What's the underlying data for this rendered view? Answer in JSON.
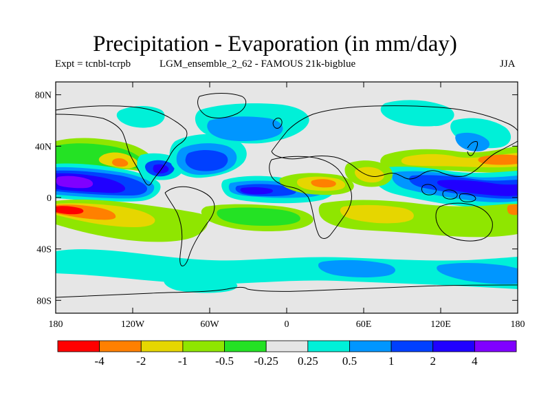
{
  "chart_data": {
    "type": "heatmap",
    "title": "Precipitation - Evaporation (in mm/day)",
    "subtitle_left": "Expt = tcnbl-tcrpb",
    "subtitle_center": "LGM_ensemble_2_62 - FAMOUS 21k-bigblue",
    "subtitle_right": "JJA",
    "x_range": [
      -180,
      180
    ],
    "y_range": [
      -90,
      90
    ],
    "x_ticks": [
      {
        "value": -180,
        "label": "180"
      },
      {
        "value": -120,
        "label": "120W"
      },
      {
        "value": -60,
        "label": "60W"
      },
      {
        "value": 0,
        "label": "0"
      },
      {
        "value": 60,
        "label": "60E"
      },
      {
        "value": 120,
        "label": "120E"
      },
      {
        "value": 180,
        "label": "180"
      }
    ],
    "y_ticks": [
      {
        "value": 80,
        "label": "80N"
      },
      {
        "value": 40,
        "label": "40N"
      },
      {
        "value": 0,
        "label": "0"
      },
      {
        "value": -40,
        "label": "40S"
      },
      {
        "value": -80,
        "label": "80S"
      }
    ],
    "color_bins": [
      {
        "color": "#ff0000",
        "min": null,
        "max": -4
      },
      {
        "color": "#ff8000",
        "min": -4,
        "max": -2
      },
      {
        "color": "#e6d600",
        "min": -2,
        "max": -1
      },
      {
        "color": "#8fe600",
        "min": -1,
        "max": -0.5
      },
      {
        "color": "#24e224",
        "min": -0.5,
        "max": -0.25
      },
      {
        "color": "#e6e6e6",
        "min": -0.25,
        "max": 0.25
      },
      {
        "color": "#00f0d8",
        "min": 0.25,
        "max": 0.5
      },
      {
        "color": "#0096ff",
        "min": 0.5,
        "max": 1
      },
      {
        "color": "#0040ff",
        "min": 1,
        "max": 2
      },
      {
        "color": "#2000ff",
        "min": 2,
        "max": 4
      },
      {
        "color": "#8000ff",
        "min": 4,
        "max": null
      }
    ],
    "colorbar_labels": [
      "-4",
      "-2",
      "-1",
      "-0.5",
      "-0.25",
      "0.25",
      "0.5",
      "1",
      "2",
      "4"
    ],
    "background_color": "#e6e6e6",
    "regions": [
      {
        "name": "east-pacific-itcz-wet",
        "lon": -145,
        "lat": 10,
        "rlon": 48,
        "rlat": 12,
        "value": 2.5
      },
      {
        "name": "east-pacific-itcz-core",
        "lon": -165,
        "lat": 8,
        "rlon": 20,
        "rlat": 7,
        "value": 5
      },
      {
        "name": "gulf-of-mexico-wet",
        "lon": -95,
        "lat": 18,
        "rlon": 18,
        "rlat": 8,
        "value": 1.5
      },
      {
        "name": "north-atlantic-wet",
        "lon": -62,
        "lat": 25,
        "rlon": 30,
        "rlat": 10,
        "value": 1.5
      },
      {
        "name": "atlantic-itcz-wet",
        "lon": -20,
        "lat": 2,
        "rlon": 25,
        "rlat": 5,
        "value": 2.5
      },
      {
        "name": "north-pacific-dry-band",
        "lon": -150,
        "lat": 35,
        "rlon": 35,
        "rlat": 8,
        "value": -1.5
      },
      {
        "name": "north-pacific-dry-west",
        "lon": -175,
        "lat": 33,
        "rlon": 15,
        "rlat": 7,
        "value": -0.7
      },
      {
        "name": "arctic-moist",
        "lon": -60,
        "lat": 60,
        "rlon": 60,
        "rlat": 8,
        "value": 0.7
      },
      {
        "name": "sahel-dry",
        "lon": 10,
        "lat": 12,
        "rlon": 15,
        "rlat": 6,
        "value": -1.5
      },
      {
        "name": "west-pacific-wet",
        "lon": 150,
        "lat": 10,
        "rlon": 30,
        "rlat": 8,
        "value": 3
      },
      {
        "name": "south-pacific-dry",
        "lon": -170,
        "lat": -12,
        "rlon": 20,
        "rlat": 6,
        "value": -5
      },
      {
        "name": "southern-ocean-wet",
        "lon": 60,
        "lat": -55,
        "rlon": 80,
        "rlat": 8,
        "value": 0.5
      }
    ]
  }
}
